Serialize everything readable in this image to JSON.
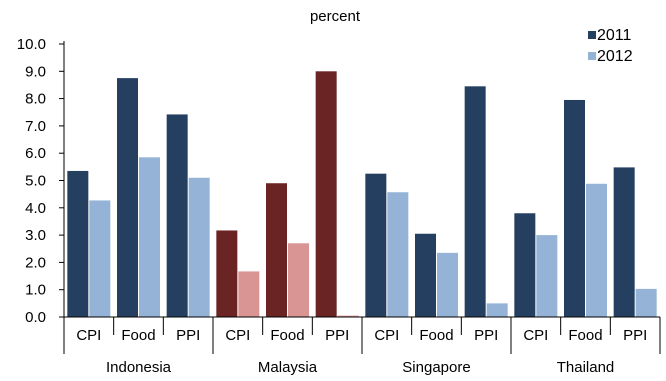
{
  "chart_data": {
    "type": "bar",
    "ylabel": "percent",
    "ylim": [
      0,
      10
    ],
    "yticks": [
      "0.0",
      "1.0",
      "2.0",
      "3.0",
      "4.0",
      "5.0",
      "6.0",
      "7.0",
      "8.0",
      "9.0",
      "10.0"
    ],
    "grid": false,
    "legend_position": "top-right",
    "groups": [
      {
        "name": "Indonesia",
        "categories": [
          "CPI",
          "Food",
          "PPI"
        ]
      },
      {
        "name": "Malaysia",
        "categories": [
          "CPI",
          "Food",
          "PPI"
        ]
      },
      {
        "name": "Singapore",
        "categories": [
          "CPI",
          "Food",
          "PPI"
        ]
      },
      {
        "name": "Thailand",
        "categories": [
          "CPI",
          "Food",
          "PPI"
        ]
      }
    ],
    "series": [
      {
        "name": "2011",
        "color": "#243F60",
        "values": [
          5.35,
          8.75,
          7.42,
          3.17,
          4.9,
          9.0,
          5.25,
          3.05,
          8.45,
          3.8,
          7.95,
          5.48
        ]
      },
      {
        "name": "2012",
        "color": "#95B3D7",
        "values": [
          4.27,
          5.85,
          5.1,
          1.67,
          2.7,
          0.05,
          4.57,
          2.35,
          0.5,
          3.0,
          4.88,
          1.03
        ]
      }
    ],
    "highlight": {
      "group": "Malaysia",
      "colors": {
        "2011": "#6B2424",
        "2012": "#D99594"
      }
    }
  }
}
